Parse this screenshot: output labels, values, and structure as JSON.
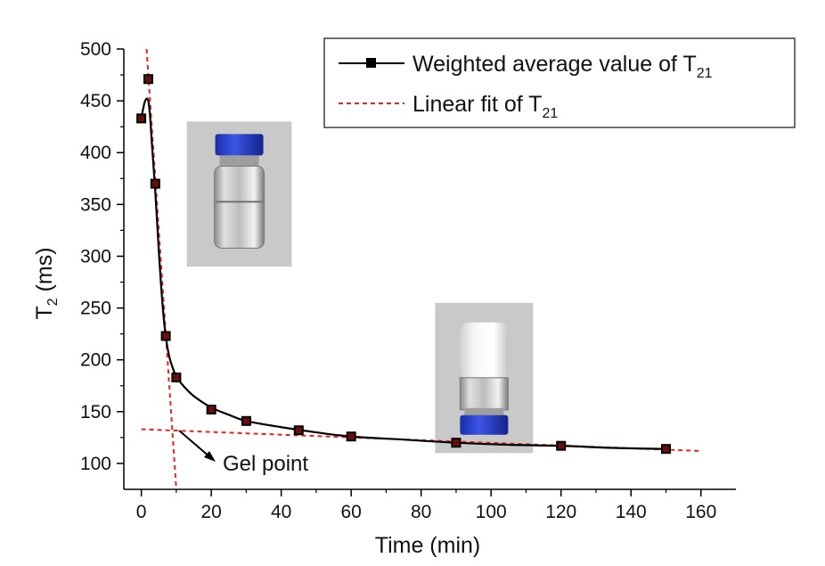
{
  "chart_data": {
    "type": "line",
    "xlabel": "Time (min)",
    "ylabel_main": "T",
    "ylabel_sub": "2",
    "ylabel_tail": " (ms)",
    "xlim": [
      -5,
      170
    ],
    "ylim": [
      75,
      500
    ],
    "x_ticks": [
      0,
      20,
      40,
      60,
      80,
      100,
      120,
      140,
      160
    ],
    "y_ticks": [
      100,
      150,
      200,
      250,
      300,
      350,
      400,
      450,
      500
    ],
    "grid": false,
    "legend_position": "top-right",
    "series": [
      {
        "name_main": "Weighted average value of T",
        "name_sub": "21",
        "color": "#000000",
        "style": "solid-with-square-markers",
        "x": [
          0,
          2,
          4,
          7,
          10,
          20,
          30,
          45,
          60,
          90,
          120,
          150
        ],
        "y": [
          433,
          471,
          370,
          223,
          183,
          152,
          141,
          132,
          126,
          120,
          117,
          114
        ]
      },
      {
        "name_main": "Linear fit of T",
        "name_sub": "21",
        "color": "#e8261e",
        "style": "dashed",
        "lines": [
          {
            "x": [
              1.5,
              10
            ],
            "y": [
              500,
              75
            ]
          },
          {
            "x": [
              0,
              160
            ],
            "y": [
              133,
              112
            ]
          }
        ]
      }
    ],
    "smooth_curve": {
      "x": [
        0,
        0.5,
        1,
        1.5,
        2,
        2.5,
        3,
        4,
        5,
        6,
        7,
        8,
        9,
        10,
        12,
        15,
        20,
        25,
        30,
        40,
        50,
        60,
        75,
        90,
        105,
        120,
        135,
        150
      ],
      "y": [
        433,
        442,
        449,
        452,
        450,
        435,
        410,
        362,
        305,
        256,
        222,
        203,
        192,
        184,
        175,
        165,
        154,
        147,
        141,
        135,
        130,
        126,
        123,
        120,
        118,
        117,
        115,
        114
      ]
    },
    "annotations": [
      {
        "text": "Gel point",
        "x": 10,
        "y": 133
      }
    ],
    "insets": [
      {
        "name": "vial-liquid-photo",
        "x_range": [
          13,
          43
        ],
        "y_range": [
          290,
          430
        ]
      },
      {
        "name": "vial-gel-photo",
        "x_range": [
          84,
          112
        ],
        "y_range": [
          110,
          255
        ]
      }
    ]
  }
}
